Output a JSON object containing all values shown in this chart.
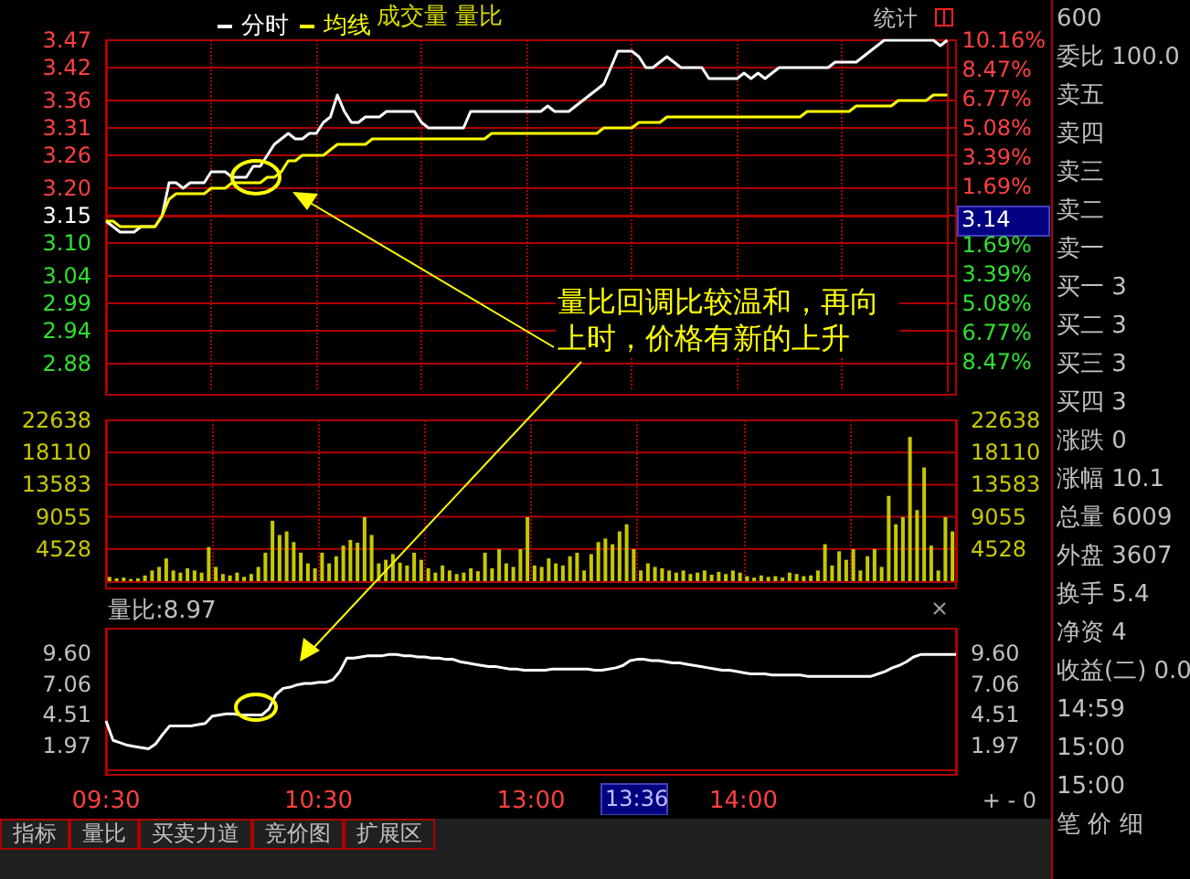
{
  "chart_data": [
    {
      "type": "line",
      "subtitle": "成交量 量比",
      "legend": "top left",
      "grid": true,
      "marker": "none",
      "categories": [
        null,
        null,
        null,
        null,
        null,
        null,
        null,
        null,
        null,
        null,
        null,
        null,
        null,
        null,
        null,
        null,
        null,
        null,
        null,
        null,
        null,
        null,
        null,
        null,
        null,
        null,
        null,
        null,
        null,
        null,
        null,
        null,
        null,
        null,
        null,
        null,
        null,
        null,
        null,
        null,
        null,
        null,
        null,
        null,
        null,
        null,
        null,
        null,
        null,
        null,
        null,
        null,
        null,
        null,
        null,
        null,
        null,
        null,
        null,
        null,
        null,
        null,
        null,
        null,
        null,
        null,
        null,
        null,
        null,
        null,
        null,
        null,
        null,
        null,
        null,
        null,
        null,
        null,
        null,
        null,
        null,
        null,
        null,
        null,
        null,
        null,
        null,
        null,
        null,
        null,
        null,
        null,
        null,
        null,
        null,
        null,
        null,
        null,
        null,
        null,
        null,
        null,
        null,
        null,
        null,
        null,
        null,
        null,
        null,
        null,
        null,
        null,
        null,
        null,
        null,
        null,
        null,
        null,
        null,
        null,
        null
      ],
      "ylim": [
        2.83,
        3.47
      ],
      "yticks": [
        3.47,
        3.42,
        3.36,
        3.31,
        3.26,
        {
          "value": 3.2,
          "label": "3.20"
        },
        3.15,
        {
          "value": 3.1,
          "label": "3.10"
        },
        3.04,
        2.99,
        2.94,
        2.88
      ],
      "y2lim": [
        -10.16,
        10.16
      ],
      "y2ticks": [
        {
          "value": 10.16,
          "label": "10.16%"
        },
        {
          "value": 8.47,
          "label": "8.47%"
        },
        {
          "value": 6.77,
          "label": "6.77%"
        },
        {
          "value": 5.08,
          "label": "5.08%"
        },
        {
          "value": 3.39,
          "label": "3.39%"
        },
        {
          "value": 1.69,
          "label": "1.69%"
        },
        {
          "value": -1.69,
          "label": "1.69%"
        },
        {
          "value": -3.39,
          "label": "3.39%"
        },
        {
          "value": -5.08,
          "label": "5.08%"
        },
        {
          "value": -6.77,
          "label": "6.77%"
        },
        {
          "value": -8.47,
          "label": "8.47%"
        }
      ],
      "annotations": [
        "量比回调比较温和，再向上时，价格有新的上升",
        "统计",
        "3.14"
      ],
      "series": [
        {
          "name": "分时",
          "color": "#ffffff",
          "values": [
            3.14,
            3.13,
            3.12,
            3.12,
            3.12,
            3.13,
            3.13,
            3.13,
            3.15,
            3.21,
            3.21,
            3.2,
            3.21,
            3.21,
            3.21,
            3.23,
            3.23,
            3.23,
            3.22,
            3.22,
            3.22,
            3.24,
            3.24,
            3.26,
            3.28,
            3.29,
            3.3,
            3.29,
            3.29,
            3.3,
            3.3,
            3.32,
            3.33,
            3.37,
            3.34,
            3.32,
            3.32,
            3.33,
            3.33,
            3.33,
            3.34,
            3.34,
            3.34,
            3.34,
            3.34,
            3.32,
            3.31,
            3.31,
            3.31,
            3.31,
            3.31,
            3.31,
            3.34,
            3.34,
            3.34,
            3.34,
            3.34,
            3.34,
            3.34,
            3.34,
            3.34,
            3.34,
            3.34,
            3.35,
            3.34,
            3.34,
            3.34,
            3.35,
            3.36,
            3.37,
            3.38,
            3.39,
            3.42,
            3.45,
            3.45,
            3.45,
            3.44,
            3.42,
            3.42,
            3.43,
            3.44,
            3.43,
            3.42,
            3.42,
            3.42,
            3.42,
            3.4,
            3.4,
            3.4,
            3.4,
            3.4,
            3.41,
            3.4,
            3.41,
            3.4,
            3.41,
            3.42,
            3.42,
            3.42,
            3.42,
            3.42,
            3.42,
            3.42,
            3.42,
            3.43,
            3.43,
            3.43,
            3.43,
            3.44,
            3.45,
            3.46,
            3.47,
            3.47,
            3.47,
            3.47,
            3.47,
            3.47,
            3.47,
            3.47,
            3.46,
            3.47
          ]
        },
        {
          "name": "均线",
          "color": "#ffff00",
          "values": [
            3.14,
            3.14,
            3.13,
            3.13,
            3.13,
            3.13,
            3.13,
            3.13,
            3.15,
            3.18,
            3.19,
            3.19,
            3.19,
            3.19,
            3.19,
            3.2,
            3.2,
            3.2,
            3.21,
            3.21,
            3.21,
            3.21,
            3.21,
            3.22,
            3.22,
            3.23,
            3.25,
            3.25,
            3.26,
            3.26,
            3.26,
            3.26,
            3.27,
            3.28,
            3.28,
            3.28,
            3.28,
            3.28,
            3.29,
            3.29,
            3.29,
            3.29,
            3.29,
            3.29,
            3.29,
            3.29,
            3.29,
            3.29,
            3.29,
            3.29,
            3.29,
            3.29,
            3.29,
            3.29,
            3.29,
            3.3,
            3.3,
            3.3,
            3.3,
            3.3,
            3.3,
            3.3,
            3.3,
            3.3,
            3.3,
            3.3,
            3.3,
            3.3,
            3.3,
            3.3,
            3.3,
            3.31,
            3.31,
            3.31,
            3.31,
            3.31,
            3.32,
            3.32,
            3.32,
            3.32,
            3.33,
            3.33,
            3.33,
            3.33,
            3.33,
            3.33,
            3.33,
            3.33,
            3.33,
            3.33,
            3.33,
            3.33,
            3.33,
            3.33,
            3.33,
            3.33,
            3.33,
            3.33,
            3.33,
            3.33,
            3.34,
            3.34,
            3.34,
            3.34,
            3.34,
            3.34,
            3.34,
            3.35,
            3.35,
            3.35,
            3.35,
            3.35,
            3.35,
            3.36,
            3.36,
            3.36,
            3.36,
            3.36,
            3.37,
            3.37,
            3.37
          ]
        }
      ]
    },
    {
      "type": "bar",
      "grid": true,
      "categories": [
        null,
        null,
        null,
        null,
        null,
        null,
        null,
        null,
        null,
        null,
        null,
        null,
        null,
        null,
        null,
        null,
        null,
        null,
        null,
        null,
        null,
        null,
        null,
        null,
        null,
        null,
        null,
        null,
        null,
        null,
        null,
        null,
        null,
        null,
        null,
        null,
        null,
        null,
        null,
        null,
        null,
        null,
        null,
        null,
        null,
        null,
        null,
        null,
        null,
        null,
        null,
        null,
        null,
        null,
        null,
        null,
        null,
        null,
        null,
        null,
        null,
        null,
        null,
        null,
        null,
        null,
        null,
        null,
        null,
        null,
        null,
        null,
        null,
        null,
        null,
        null,
        null,
        null,
        null,
        null,
        null,
        null,
        null,
        null,
        null,
        null,
        null,
        null,
        null,
        null,
        null,
        null,
        null,
        null,
        null,
        null,
        null,
        null,
        null,
        null,
        null,
        null,
        null,
        null,
        null,
        null,
        null,
        null,
        null,
        null,
        null,
        null,
        null,
        null,
        null,
        null,
        null,
        null,
        null,
        null
      ],
      "ylim": [
        0,
        22638
      ],
      "yticks": [
        4528,
        9055,
        13583,
        18110,
        22638
      ],
      "y2lim": [
        0,
        22638
      ],
      "y2ticks": [
        4528,
        9055,
        13583,
        18110,
        22638
      ],
      "series": [
        {
          "color": "#c8c800",
          "values": [
            600,
            400,
            500,
            300,
            400,
            800,
            1500,
            2000,
            3200,
            1500,
            1200,
            1800,
            1500,
            1200,
            4800,
            2000,
            1000,
            800,
            1200,
            600,
            1000,
            2000,
            4000,
            8500,
            6500,
            7000,
            5500,
            4000,
            2500,
            1800,
            4000,
            2500,
            3500,
            5000,
            5800,
            5400,
            9000,
            6500,
            2500,
            3000,
            3800,
            2600,
            2200,
            4000,
            3000,
            1800,
            1200,
            2200,
            1500,
            1000,
            1200,
            1800,
            1400,
            4000,
            1800,
            4500,
            2500,
            2000,
            4500,
            9000,
            2200,
            2000,
            3200,
            2500,
            2200,
            3500,
            4000,
            1500,
            3800,
            5500,
            6000,
            5200,
            7000,
            8000,
            4500,
            1500,
            2500,
            2000,
            1800,
            1500,
            1200,
            1500,
            1000,
            1200,
            1500,
            900,
            1300,
            1000,
            1500,
            1200,
            700,
            500,
            800,
            600,
            700,
            500,
            1200,
            1000,
            700,
            800,
            1500,
            5200,
            2200,
            4200,
            3000,
            4500,
            1500,
            3500,
            4500,
            2000,
            12000,
            8000,
            9000,
            20300,
            10000,
            16000,
            5000,
            1500,
            9000,
            7000
          ]
        }
      ]
    },
    {
      "type": "line",
      "title": "量比:8.97",
      "marker": "none",
      "categories": [
        "09:30",
        null,
        null,
        null,
        null,
        null,
        null,
        null,
        null,
        null,
        null,
        null,
        null,
        null,
        null,
        null,
        null,
        null,
        null,
        null,
        null,
        null,
        null,
        null,
        null,
        null,
        null,
        null,
        null,
        null,
        "10:30",
        null,
        null,
        null,
        null,
        null,
        null,
        null,
        null,
        null,
        null,
        null,
        null,
        null,
        null,
        null,
        null,
        null,
        null,
        null,
        null,
        null,
        null,
        null,
        null,
        null,
        null,
        null,
        null,
        null,
        "13:00",
        null,
        null,
        null,
        null,
        null,
        null,
        null,
        null,
        null,
        null,
        null,
        null,
        null,
        null,
        null,
        null,
        null,
        null,
        null,
        null,
        null,
        null,
        null,
        null,
        null,
        null,
        null,
        null,
        null,
        "14:00",
        null,
        null,
        null,
        null,
        null,
        null,
        null,
        null,
        null,
        null,
        null,
        null,
        null,
        null,
        null,
        null,
        null,
        null,
        null,
        null,
        null,
        null,
        null,
        null,
        null,
        null,
        null,
        null,
        null,
        null
      ],
      "ylim": [
        -0.45,
        11.64
      ],
      "yticks": [
        {
          "value": 9.6,
          "label": "9.60"
        },
        7.06,
        4.51,
        1.97
      ],
      "y2lim": [
        -0.45,
        11.64
      ],
      "y2ticks": [
        {
          "value": 9.6,
          "label": "9.60"
        },
        7.06,
        4.51,
        1.97
      ],
      "annotations": [
        "13:36",
        "+ - 0"
      ],
      "series": [
        {
          "color": "#ffffff",
          "values": [
            4.0,
            2.4,
            2.2,
            2.0,
            1.9,
            1.8,
            1.7,
            2.1,
            2.9,
            3.6,
            3.6,
            3.6,
            3.6,
            3.7,
            3.8,
            4.4,
            4.5,
            4.6,
            4.6,
            4.5,
            4.5,
            4.5,
            4.5,
            5.0,
            6.2,
            6.7,
            6.8,
            7.0,
            7.1,
            7.1,
            7.2,
            7.2,
            7.4,
            8.1,
            9.2,
            9.2,
            9.3,
            9.4,
            9.4,
            9.4,
            9.5,
            9.5,
            9.4,
            9.4,
            9.3,
            9.3,
            9.2,
            9.2,
            9.1,
            9.1,
            8.9,
            8.8,
            8.7,
            8.6,
            8.5,
            8.5,
            8.4,
            8.3,
            8.3,
            8.2,
            8.2,
            8.2,
            8.2,
            8.3,
            8.3,
            8.3,
            8.3,
            8.3,
            8.3,
            8.2,
            8.2,
            8.3,
            8.4,
            8.6,
            9.0,
            9.1,
            9.1,
            9.0,
            9.0,
            8.9,
            8.8,
            8.8,
            8.7,
            8.6,
            8.5,
            8.4,
            8.3,
            8.2,
            8.2,
            8.1,
            8.0,
            7.9,
            7.9,
            7.9,
            7.8,
            7.8,
            7.8,
            7.8,
            7.8,
            7.7,
            7.7,
            7.7,
            7.7,
            7.7,
            7.7,
            7.7,
            7.7,
            7.7,
            7.7,
            7.9,
            8.1,
            8.4,
            8.6,
            8.9,
            9.3,
            9.5,
            9.5,
            9.5,
            9.5,
            9.5,
            9.5
          ]
        }
      ]
    },
    {
      "type": "other",
      "annotations": [
        "600",
        "委比 100.0",
        "卖五",
        "卖四",
        "卖三",
        "卖二",
        "卖一",
        "买一 3",
        "买二 3",
        "买三 3",
        "买四 3",
        "涨跌 0",
        "涨幅 10.1",
        "总量 6009",
        "外盘 3607",
        "换手 5.4",
        "净资 4",
        "收益(二) 0.0",
        "14:59",
        "15:00",
        "15:00",
        "笔 价 细"
      ]
    },
    {
      "type": "other",
      "annotations": [
        "指标",
        "量比",
        "买卖力道",
        "竞价图",
        "扩展区"
      ]
    }
  ]
}
